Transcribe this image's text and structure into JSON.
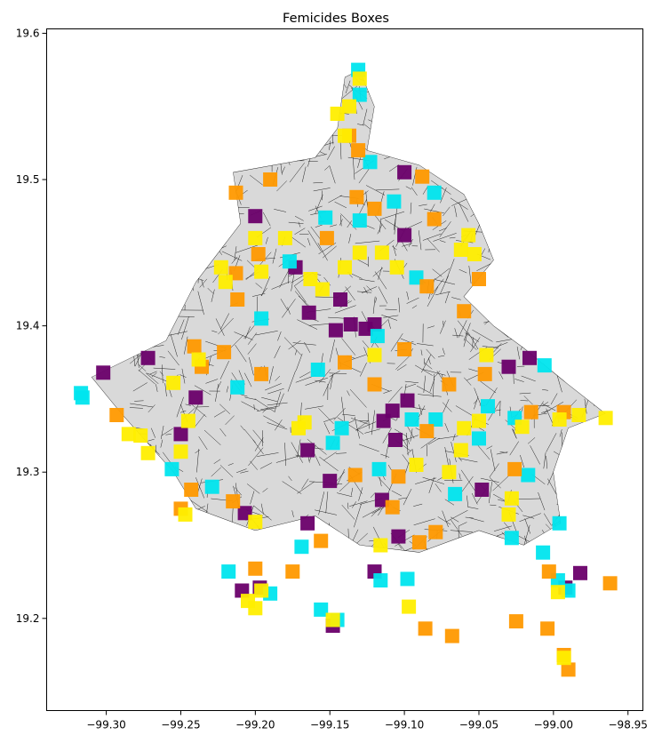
{
  "chart_data": {
    "type": "scatter",
    "title": "Femicides Boxes",
    "xlabel": "",
    "ylabel": "",
    "xlim": [
      -99.34,
      -98.94
    ],
    "ylim": [
      19.137,
      19.603
    ],
    "x_ticks": [
      -99.3,
      -99.25,
      -99.2,
      -99.15,
      -99.1,
      -99.05,
      -99.0,
      -98.95
    ],
    "x_tick_labels": [
      "−99.30",
      "−99.25",
      "−99.20",
      "−99.15",
      "−99.10",
      "−99.05",
      "−99.00",
      "−98.95"
    ],
    "y_ticks": [
      19.2,
      19.3,
      19.4,
      19.5,
      19.6
    ],
    "y_tick_labels": [
      "19.2",
      "19.3",
      "19.4",
      "19.5",
      "19.6"
    ],
    "grid": false,
    "legend": "none",
    "colors": {
      "purple": "#6a006a",
      "cyan": "#00e5ee",
      "orange": "#ff9900",
      "yellow": "#ffee00",
      "street_network": "#222222"
    },
    "series": [
      {
        "color": "#6a006a",
        "points": [
          [
            -99.302,
            19.368
          ],
          [
            -99.272,
            19.378
          ],
          [
            -99.24,
            19.351
          ],
          [
            -99.25,
            19.326
          ],
          [
            -99.207,
            19.272
          ],
          [
            -99.165,
            19.315
          ],
          [
            -99.15,
            19.294
          ],
          [
            -99.115,
            19.281
          ],
          [
            -99.114,
            19.335
          ],
          [
            -99.108,
            19.342
          ],
          [
            -99.106,
            19.322
          ],
          [
            -99.098,
            19.349
          ],
          [
            -99.104,
            19.256
          ],
          [
            -99.12,
            19.232
          ],
          [
            -99.165,
            19.265
          ],
          [
            -99.197,
            19.221
          ],
          [
            -99.209,
            19.219
          ],
          [
            -99.148,
            19.195
          ],
          [
            -99.146,
            19.397
          ],
          [
            -99.136,
            19.401
          ],
          [
            -99.126,
            19.398
          ],
          [
            -99.12,
            19.401
          ],
          [
            -99.164,
            19.409
          ],
          [
            -99.143,
            19.418
          ],
          [
            -99.1,
            19.462
          ],
          [
            -99.173,
            19.44
          ],
          [
            -99.2,
            19.475
          ],
          [
            -99.1,
            19.505
          ],
          [
            -99.048,
            19.288
          ],
          [
            -99.03,
            19.372
          ],
          [
            -99.016,
            19.378
          ],
          [
            -98.982,
            19.231
          ],
          [
            -98.992,
            19.221
          ]
        ]
      },
      {
        "color": "#00e5ee",
        "points": [
          [
            -99.316,
            19.351
          ],
          [
            -99.317,
            19.354
          ],
          [
            -99.212,
            19.358
          ],
          [
            -99.256,
            19.302
          ],
          [
            -99.229,
            19.29
          ],
          [
            -99.19,
            19.217
          ],
          [
            -99.218,
            19.232
          ],
          [
            -99.169,
            19.249
          ],
          [
            -99.156,
            19.206
          ],
          [
            -99.145,
            19.199
          ],
          [
            -99.098,
            19.227
          ],
          [
            -99.116,
            19.226
          ],
          [
            -99.028,
            19.255
          ],
          [
            -99.007,
            19.245
          ],
          [
            -98.997,
            19.226
          ],
          [
            -98.99,
            19.219
          ],
          [
            -98.996,
            19.265
          ],
          [
            -99.117,
            19.302
          ],
          [
            -99.095,
            19.336
          ],
          [
            -99.079,
            19.336
          ],
          [
            -99.066,
            19.285
          ],
          [
            -99.05,
            19.323
          ],
          [
            -99.044,
            19.345
          ],
          [
            -99.026,
            19.337
          ],
          [
            -99.017,
            19.298
          ],
          [
            -99.006,
            19.373
          ],
          [
            -99.118,
            19.393
          ],
          [
            -99.092,
            19.433
          ],
          [
            -99.158,
            19.37
          ],
          [
            -99.142,
            19.33
          ],
          [
            -99.148,
            19.32
          ],
          [
            -99.13,
            19.472
          ],
          [
            -99.107,
            19.485
          ],
          [
            -99.08,
            19.491
          ],
          [
            -99.123,
            19.512
          ],
          [
            -99.13,
            19.558
          ],
          [
            -99.131,
            19.575
          ],
          [
            -99.196,
            19.405
          ],
          [
            -99.177,
            19.444
          ],
          [
            -99.153,
            19.474
          ]
        ]
      },
      {
        "color": "#ff9900",
        "points": [
          [
            -99.293,
            19.339
          ],
          [
            -99.25,
            19.275
          ],
          [
            -99.243,
            19.288
          ],
          [
            -99.215,
            19.28
          ],
          [
            -99.2,
            19.234
          ],
          [
            -99.175,
            19.232
          ],
          [
            -99.156,
            19.253
          ],
          [
            -99.133,
            19.298
          ],
          [
            -99.108,
            19.276
          ],
          [
            -99.09,
            19.252
          ],
          [
            -99.079,
            19.259
          ],
          [
            -99.086,
            19.193
          ],
          [
            -99.068,
            19.188
          ],
          [
            -99.025,
            19.198
          ],
          [
            -99.004,
            19.193
          ],
          [
            -99.003,
            19.232
          ],
          [
            -98.993,
            19.175
          ],
          [
            -98.99,
            19.165
          ],
          [
            -98.962,
            19.224
          ],
          [
            -99.026,
            19.302
          ],
          [
            -99.015,
            19.341
          ],
          [
            -98.993,
            19.341
          ],
          [
            -99.046,
            19.367
          ],
          [
            -99.07,
            19.36
          ],
          [
            -99.085,
            19.328
          ],
          [
            -99.104,
            19.297
          ],
          [
            -99.241,
            19.386
          ],
          [
            -99.236,
            19.372
          ],
          [
            -99.221,
            19.382
          ],
          [
            -99.196,
            19.367
          ],
          [
            -99.212,
            19.418
          ],
          [
            -99.213,
            19.436
          ],
          [
            -99.198,
            19.449
          ],
          [
            -99.19,
            19.5
          ],
          [
            -99.213,
            19.491
          ],
          [
            -99.152,
            19.46
          ],
          [
            -99.12,
            19.48
          ],
          [
            -99.08,
            19.473
          ],
          [
            -99.088,
            19.502
          ],
          [
            -99.085,
            19.427
          ],
          [
            -99.06,
            19.41
          ],
          [
            -99.05,
            19.432
          ],
          [
            -99.1,
            19.384
          ],
          [
            -99.12,
            19.36
          ],
          [
            -99.14,
            19.375
          ],
          [
            -99.131,
            19.52
          ],
          [
            -99.132,
            19.488
          ],
          [
            -99.137,
            19.53
          ]
        ]
      },
      {
        "color": "#ffee00",
        "points": [
          [
            -99.285,
            19.326
          ],
          [
            -99.277,
            19.325
          ],
          [
            -99.272,
            19.313
          ],
          [
            -99.25,
            19.314
          ],
          [
            -99.247,
            19.271
          ],
          [
            -99.2,
            19.266
          ],
          [
            -99.205,
            19.212
          ],
          [
            -99.196,
            19.219
          ],
          [
            -99.2,
            19.207
          ],
          [
            -99.148,
            19.199
          ],
          [
            -99.116,
            19.25
          ],
          [
            -99.097,
            19.208
          ],
          [
            -99.03,
            19.271
          ],
          [
            -99.028,
            19.282
          ],
          [
            -98.997,
            19.218
          ],
          [
            -98.993,
            19.173
          ],
          [
            -98.996,
            19.336
          ],
          [
            -98.983,
            19.339
          ],
          [
            -98.965,
            19.337
          ],
          [
            -99.021,
            19.331
          ],
          [
            -99.05,
            19.335
          ],
          [
            -99.06,
            19.33
          ],
          [
            -99.092,
            19.305
          ],
          [
            -99.07,
            19.3
          ],
          [
            -99.062,
            19.315
          ],
          [
            -99.255,
            19.361
          ],
          [
            -99.238,
            19.377
          ],
          [
            -99.245,
            19.335
          ],
          [
            -99.196,
            19.437
          ],
          [
            -99.2,
            19.46
          ],
          [
            -99.163,
            19.432
          ],
          [
            -99.155,
            19.425
          ],
          [
            -99.14,
            19.44
          ],
          [
            -99.13,
            19.45
          ],
          [
            -99.115,
            19.45
          ],
          [
            -99.105,
            19.44
          ],
          [
            -99.062,
            19.452
          ],
          [
            -99.057,
            19.462
          ],
          [
            -99.053,
            19.449
          ],
          [
            -99.14,
            19.53
          ],
          [
            -99.145,
            19.545
          ],
          [
            -99.137,
            19.55
          ],
          [
            -99.13,
            19.569
          ],
          [
            -99.18,
            19.46
          ],
          [
            -99.223,
            19.44
          ],
          [
            -99.045,
            19.38
          ],
          [
            -99.12,
            19.38
          ],
          [
            -99.167,
            19.334
          ],
          [
            -99.171,
            19.33
          ],
          [
            -99.22,
            19.43
          ]
        ]
      }
    ]
  }
}
